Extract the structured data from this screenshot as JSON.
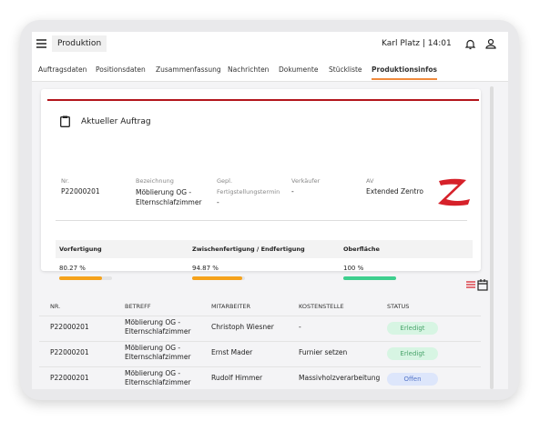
{
  "header": {
    "title": "Produktion",
    "user": "Karl Platz | 14:01"
  },
  "tabs": [
    "Auftragsdaten",
    "Positionsdaten",
    "Zusammenfassung",
    "Nachrichten",
    "Dokumente",
    "Stückliste",
    "Produktionsinfos"
  ],
  "card": {
    "title": "Aktueller Auftrag",
    "fields": [
      {
        "label": "Nr.",
        "value": "P22000201"
      },
      {
        "label": "Bezeichnung",
        "value": "Möblierung OG - Elternschlafzimmer"
      },
      {
        "label": "Gepl.",
        "sub": "Fertigstellungstermin",
        "value": "-"
      },
      {
        "label": "Verkäufer",
        "value": "-"
      },
      {
        "label": "AV",
        "value": "Extended Zentro"
      }
    ],
    "progress": [
      {
        "name": "Vorfertigung",
        "value": 80.27,
        "label": "80.27 %",
        "color": "#f5a21b"
      },
      {
        "name": "Zwischenfertigung / Endfertigung",
        "value": 94.87,
        "label": "94.87 %",
        "color": "#f5a21b"
      },
      {
        "name": "Oberfläche",
        "value": 100,
        "label": "100 %",
        "color": "#3ecf8e"
      }
    ]
  },
  "table": {
    "columns": [
      "NR.",
      "BETREFF",
      "MITARBEITER",
      "KOSTENSTELLE",
      "STATUS"
    ],
    "rows": [
      [
        "P22000201",
        "Möblierung OG - Elternschlafzimmer",
        "Christoph Wiesner",
        "-",
        "Erledigt"
      ],
      [
        "P22000201",
        "Möblierung OG - Elternschlafzimmer",
        "Ernst Mader",
        "Furnier setzen",
        "Erledigt"
      ],
      [
        "P22000201",
        "Möblierung OG - Elternschlafzimmer",
        "Rudolf Himmer",
        "Massivholzverarbeitung",
        "Offen"
      ]
    ]
  }
}
